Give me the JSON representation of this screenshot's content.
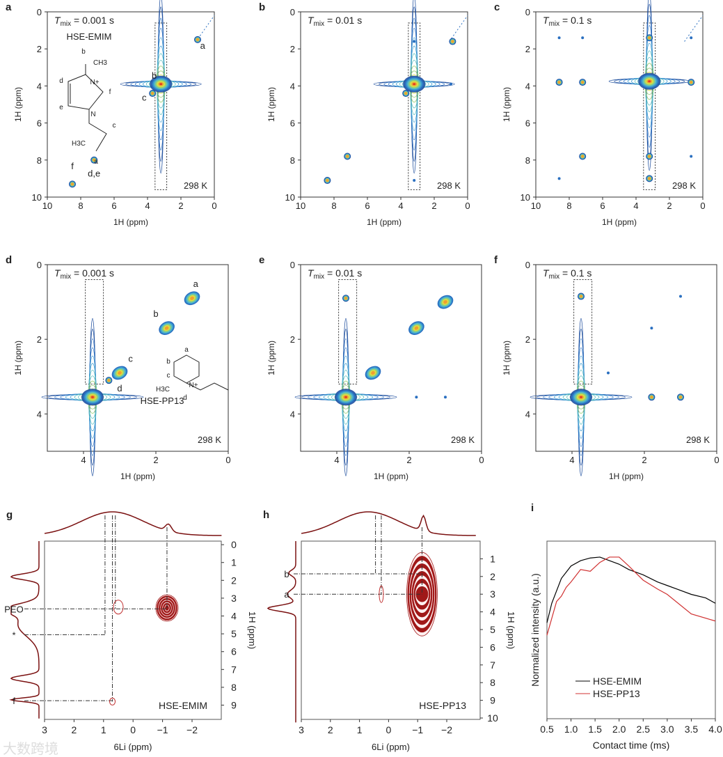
{
  "panels": [
    {
      "letter": "a",
      "tmix_label": "T",
      "tmix_sub": "mix",
      "tmix_value": " = 0.001 s",
      "sample": "HSE-EMIM",
      "temp": "298 K",
      "xlabel": "1H (ppm)",
      "ylabel": "1H (ppm)",
      "xticks": [
        "10",
        "8",
        "6",
        "4",
        "2",
        "0"
      ],
      "yticks": [
        "0",
        "2",
        "4",
        "6",
        "8",
        "10"
      ],
      "peaks": [
        [
          3.2,
          3.9,
          "cross-big"
        ],
        [
          1.0,
          1.5,
          "small"
        ],
        [
          3.7,
          4.4,
          "small"
        ],
        [
          7.2,
          8.0,
          "small"
        ],
        [
          8.5,
          9.3,
          "small"
        ]
      ],
      "peak_labels": [
        "a",
        "b",
        "c",
        "d,e",
        "f"
      ],
      "structure_labels": [
        "b",
        "CH3",
        "N+",
        "d",
        "f",
        "e",
        "N",
        "c",
        "H3C",
        "a"
      ]
    },
    {
      "letter": "b",
      "tmix_label": "T",
      "tmix_sub": "mix",
      "tmix_value": " = 0.01 s",
      "temp": "298 K",
      "xlabel": "1H (ppm)",
      "ylabel": "1H (ppm)",
      "xticks": [
        "10",
        "8",
        "6",
        "4",
        "2",
        "0"
      ],
      "yticks": [
        "0",
        "2",
        "4",
        "6",
        "8",
        "10"
      ],
      "peaks": [
        [
          3.2,
          3.9,
          "cross-big"
        ],
        [
          0.9,
          1.6,
          "small"
        ],
        [
          3.7,
          4.4,
          "small"
        ],
        [
          7.2,
          7.8,
          "small"
        ],
        [
          8.4,
          9.1,
          "small"
        ],
        [
          1.0,
          3.9,
          "dot"
        ],
        [
          3.2,
          1.6,
          "dot"
        ],
        [
          3.2,
          9.1,
          "dot"
        ]
      ]
    },
    {
      "letter": "c",
      "tmix_label": "T",
      "tmix_sub": "mix",
      "tmix_value": " = 0.1 s",
      "temp": "298 K",
      "xlabel": "1H (ppm)",
      "ylabel": "1H (ppm)",
      "xticks": [
        "10",
        "8",
        "6",
        "4",
        "2",
        "0"
      ],
      "yticks": [
        "0",
        "2",
        "4",
        "6",
        "8",
        "10"
      ],
      "peaks": [
        [
          3.2,
          3.75,
          "cross-big"
        ],
        [
          0.7,
          1.4,
          "dot"
        ],
        [
          0.7,
          3.8,
          "small"
        ],
        [
          0.7,
          7.8,
          "dot"
        ],
        [
          7.2,
          1.4,
          "dot"
        ],
        [
          7.2,
          3.8,
          "small"
        ],
        [
          7.2,
          7.8,
          "small"
        ],
        [
          8.6,
          1.4,
          "dot"
        ],
        [
          8.6,
          3.8,
          "small"
        ],
        [
          8.6,
          9.0,
          "dot"
        ],
        [
          3.2,
          1.4,
          "small"
        ],
        [
          3.2,
          7.8,
          "small"
        ],
        [
          3.2,
          9.0,
          "small"
        ]
      ]
    },
    {
      "letter": "d",
      "tmix_label": "T",
      "tmix_sub": "mix",
      "tmix_value": " = 0.001 s",
      "sample": "HSE-PP13",
      "temp": "298 K",
      "xlabel": "1H (ppm)",
      "ylabel": "1H (ppm)",
      "xticks": [
        "4",
        "2",
        "0"
      ],
      "yticks": [
        "0",
        "2",
        "4"
      ],
      "peaks": [
        [
          3.75,
          3.55,
          "cross-wide"
        ],
        [
          1.0,
          0.9,
          "med"
        ],
        [
          1.7,
          1.7,
          "med"
        ],
        [
          3.0,
          2.9,
          "med"
        ],
        [
          3.3,
          3.1,
          "small"
        ]
      ],
      "peak_labels": [
        "a",
        "b",
        "c",
        "d"
      ],
      "structure_labels": [
        "a",
        "b",
        "c",
        "N+",
        "d",
        "H3C"
      ]
    },
    {
      "letter": "e",
      "tmix_label": "T",
      "tmix_sub": "mix",
      "tmix_value": " = 0.01 s",
      "temp": "298 K",
      "xlabel": "1H (ppm)",
      "ylabel": "1H (ppm)",
      "xticks": [
        "4",
        "2",
        "0"
      ],
      "yticks": [
        "0",
        "2",
        "4"
      ],
      "peaks": [
        [
          3.75,
          3.55,
          "cross-wide"
        ],
        [
          1.0,
          1.0,
          "med"
        ],
        [
          1.8,
          1.7,
          "med"
        ],
        [
          3.0,
          2.9,
          "med"
        ],
        [
          1.8,
          3.55,
          "dot"
        ],
        [
          1.0,
          3.55,
          "dot"
        ],
        [
          3.75,
          0.9,
          "small"
        ]
      ]
    },
    {
      "letter": "f",
      "tmix_label": "T",
      "tmix_sub": "mix",
      "tmix_value": " = 0.1 s",
      "temp": "298 K",
      "xlabel": "1H (ppm)",
      "ylabel": "1H (ppm)",
      "xticks": [
        "4",
        "2",
        "0"
      ],
      "yticks": [
        "0",
        "2",
        "4"
      ],
      "peaks": [
        [
          3.75,
          3.55,
          "cross-wide"
        ],
        [
          1.0,
          0.85,
          "dot"
        ],
        [
          1.8,
          3.55,
          "small"
        ],
        [
          1.0,
          3.55,
          "small"
        ],
        [
          3.75,
          0.85,
          "small"
        ],
        [
          3.0,
          2.9,
          "dot"
        ],
        [
          1.8,
          1.7,
          "dot"
        ]
      ]
    }
  ],
  "panel_g": {
    "letter": "g",
    "sample": "HSE-EMIM",
    "xlabel": "6Li (ppm)",
    "ylabel": "1H (ppm)",
    "xticks": [
      "3",
      "2",
      "1",
      "0",
      "−1",
      "−2"
    ],
    "yticks": [
      "0",
      "1",
      "2",
      "3",
      "4",
      "5",
      "6",
      "7",
      "8",
      "9"
    ],
    "side_labels": [
      "PEO",
      "*",
      "f"
    ]
  },
  "panel_h": {
    "letter": "h",
    "sample": "HSE-PP13",
    "xlabel": "6Li (ppm)",
    "ylabel": "1H (ppm)",
    "xticks": [
      "3",
      "2",
      "1",
      "0",
      "−1",
      "−2"
    ],
    "yticks": [
      "1",
      "2",
      "3",
      "4",
      "5",
      "6",
      "7",
      "8",
      "9",
      "10"
    ],
    "side_labels": [
      "b",
      "a"
    ]
  },
  "watermark": "大数跨境",
  "chart_data": {
    "type": "line",
    "letter": "i",
    "title": "",
    "xlabel": "Contact time (ms)",
    "ylabel": "Normalized intensity (a.u.)",
    "xlim": [
      0.5,
      4.0
    ],
    "ylim": [
      0,
      1
    ],
    "xticks": [
      "0.5",
      "1.0",
      "1.5",
      "2.0",
      "2.5",
      "3.0",
      "3.5",
      "4.0"
    ],
    "legend": "bottom-left",
    "series": [
      {
        "name": "HSE-EMIM",
        "color": "#000000",
        "x": [
          0.5,
          0.6,
          0.8,
          1.0,
          1.2,
          1.4,
          1.6,
          1.8,
          2.0,
          2.2,
          2.5,
          2.8,
          3.0,
          3.2,
          3.5,
          3.8,
          4.0
        ],
        "y": [
          0.54,
          0.65,
          0.79,
          0.86,
          0.89,
          0.905,
          0.91,
          0.89,
          0.87,
          0.84,
          0.81,
          0.77,
          0.75,
          0.73,
          0.7,
          0.68,
          0.65
        ]
      },
      {
        "name": "HSE-PP13",
        "color": "#d03030",
        "x": [
          0.5,
          0.7,
          0.8,
          0.9,
          1.0,
          1.2,
          1.4,
          1.6,
          1.8,
          2.0,
          2.2,
          2.5,
          2.8,
          3.0,
          3.5,
          4.0
        ],
        "y": [
          0.47,
          0.66,
          0.69,
          0.74,
          0.77,
          0.84,
          0.83,
          0.88,
          0.91,
          0.91,
          0.86,
          0.78,
          0.73,
          0.7,
          0.59,
          0.55
        ]
      }
    ]
  }
}
